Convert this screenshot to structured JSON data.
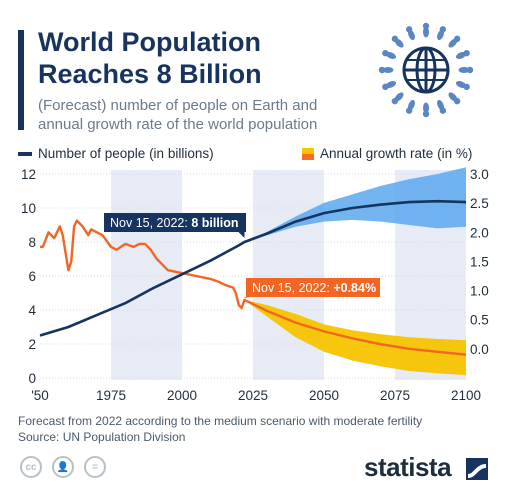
{
  "header": {
    "title_line1": "World Population",
    "title_line2": "Reaches 8 Billion",
    "subtitle_line1": "(Forecast) number of people on Earth and",
    "subtitle_line2": "annual growth rate of the world population"
  },
  "legend": {
    "population": "Number of people (in billions)",
    "growth": "Annual growth rate (in %)"
  },
  "colors": {
    "population_line": "#17335f",
    "population_band": "#5ba8ee",
    "growth_line": "#f26522",
    "growth_band": "#f5c400",
    "shade": "#e6ebf6",
    "callout_pop": "#17335f",
    "callout_growth": "#f26522"
  },
  "chart_data": {
    "type": "line",
    "x_ticks": [
      "'50",
      "1975",
      "2000",
      "2025",
      "2050",
      "2075",
      "2100"
    ],
    "y_left_ticks": [
      "0",
      "2",
      "4",
      "6",
      "8",
      "10",
      "12"
    ],
    "y_right_ticks": [
      "0.0",
      "0.5",
      "1.0",
      "1.5",
      "2.0",
      "2.5",
      "3.0"
    ],
    "y_left_range": [
      0,
      12
    ],
    "y_right_range": [
      -0.5,
      3.0
    ],
    "x_range": [
      1950,
      2100
    ],
    "shaded_periods": [
      [
        1975,
        2000
      ],
      [
        2025,
        2050
      ],
      [
        2075,
        2100
      ]
    ],
    "series": [
      {
        "name": "Number of people (in billions)",
        "axis": "left",
        "x": [
          1950,
          1960,
          1970,
          1980,
          1990,
          2000,
          2010,
          2020,
          2022,
          2030,
          2040,
          2050,
          2060,
          2070,
          2080,
          2090,
          2100
        ],
        "values": [
          2.5,
          3.0,
          3.7,
          4.4,
          5.3,
          6.1,
          6.9,
          7.8,
          8.0,
          8.5,
          9.2,
          9.7,
          10.0,
          10.2,
          10.35,
          10.4,
          10.35
        ],
        "forecast_band": {
          "x": [
            2022,
            2030,
            2040,
            2050,
            2060,
            2070,
            2080,
            2090,
            2100
          ],
          "low": [
            8.0,
            8.4,
            8.9,
            9.2,
            9.3,
            9.2,
            9.0,
            8.8,
            8.9
          ],
          "high": [
            8.0,
            8.6,
            9.5,
            10.3,
            10.8,
            11.3,
            11.7,
            12.0,
            12.4
          ]
        }
      },
      {
        "name": "Annual growth rate (in %)",
        "axis": "right",
        "x": [
          1950,
          1951,
          1953,
          1955,
          1957,
          1958,
          1959,
          1960,
          1961,
          1962,
          1963,
          1965,
          1967,
          1968,
          1970,
          1972,
          1975,
          1977,
          1980,
          1983,
          1985,
          1987,
          1989,
          1991,
          1993,
          1995,
          2000,
          2005,
          2010,
          2013,
          2015,
          2018,
          2019,
          2020,
          2021,
          2022,
          2030,
          2040,
          2050,
          2060,
          2070,
          2080,
          2090,
          2100
        ],
        "values": [
          1.75,
          1.75,
          2.0,
          1.9,
          2.1,
          1.95,
          1.65,
          1.35,
          1.5,
          2.1,
          2.2,
          2.1,
          1.95,
          2.05,
          2.0,
          1.95,
          1.75,
          1.7,
          1.8,
          1.75,
          1.8,
          1.8,
          1.7,
          1.55,
          1.45,
          1.35,
          1.3,
          1.25,
          1.2,
          1.15,
          1.1,
          1.05,
          0.95,
          0.75,
          0.7,
          0.84,
          0.65,
          0.45,
          0.3,
          0.18,
          0.08,
          0.0,
          -0.05,
          -0.1
        ],
        "forecast_band": {
          "x": [
            2022,
            2030,
            2040,
            2050,
            2060,
            2070,
            2080,
            2090,
            2100
          ],
          "low": [
            0.84,
            0.55,
            0.2,
            -0.05,
            -0.2,
            -0.3,
            -0.38,
            -0.42,
            -0.45
          ],
          "high": [
            0.84,
            0.75,
            0.6,
            0.42,
            0.32,
            0.25,
            0.2,
            0.17,
            0.15
          ]
        }
      }
    ],
    "annotations": [
      {
        "prefix": "Nov 15, 2022:",
        "value": "8 billion",
        "x": 2022,
        "y": 8.0,
        "axis": "left"
      },
      {
        "prefix": "Nov 15, 2022:",
        "value": "+0.84%",
        "x": 2022,
        "y": 0.84,
        "axis": "right"
      }
    ]
  },
  "footer": {
    "forecast_note": "Forecast from 2022 according to the medium scenario with moderate fertility",
    "source": "Source: UN Population Division",
    "license_icons": [
      "cc",
      "by",
      "="
    ],
    "brand": "statista"
  }
}
